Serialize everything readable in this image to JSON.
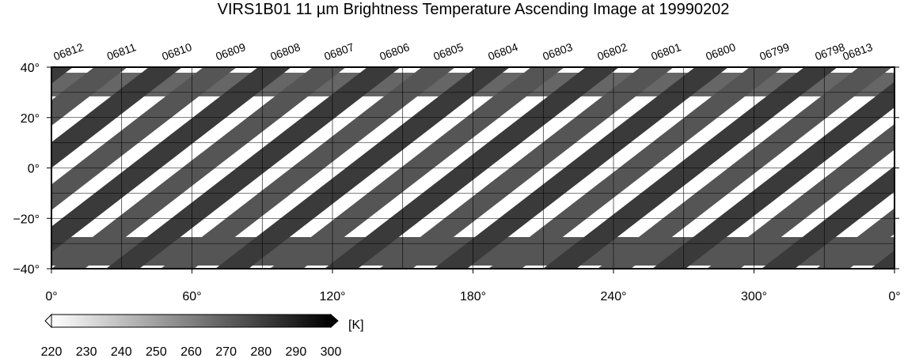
{
  "title": "VIRS1B01 11 µm Brightness Temperature Ascending Image at 19990202",
  "orbits": [
    "06812",
    "06811",
    "06810",
    "06809",
    "06808",
    "06807",
    "06806",
    "06805",
    "06804",
    "06803",
    "06802",
    "06801",
    "06800",
    "06799",
    "06798",
    "06813"
  ],
  "lat_labels": [
    "40°",
    "20°",
    "0°",
    "−20°",
    "−40°"
  ],
  "lon_labels": [
    "0°",
    "60°",
    "120°",
    "180°",
    "240°",
    "300°",
    "0°"
  ],
  "colorbar": {
    "unit": "[K]",
    "ticks": [
      220,
      230,
      240,
      250,
      260,
      270,
      280,
      290,
      300
    ],
    "min": 220,
    "max": 300
  }
}
